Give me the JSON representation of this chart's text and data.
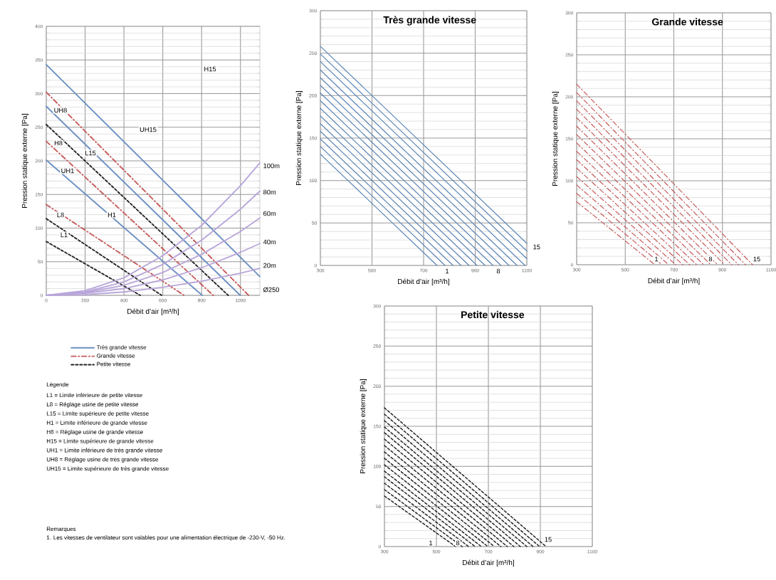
{
  "chart_data": [
    {
      "type": "line",
      "xlabel": "Débit d’air [m³/h]",
      "ylabel": "Pression statique externe [Pa]",
      "xlim": [
        0,
        1100
      ],
      "ylim": [
        0,
        400
      ],
      "xticks": [
        0,
        200,
        400,
        600,
        800,
        1000
      ],
      "yticks": [
        0,
        50,
        100,
        150,
        200,
        250,
        300,
        350,
        400
      ],
      "grid": true,
      "legend": "bottom",
      "series": [
        {
          "name": "Très grande vitesse",
          "color": "#6b8fc2",
          "line_style": "solid",
          "x": [
            0,
            1100
          ],
          "values": [
            343,
            28
          ]
        },
        {
          "color": "#6b8fc2",
          "line_style": "solid",
          "x": [
            0,
            999
          ],
          "values": [
            281,
            0
          ]
        },
        {
          "color": "#6b8fc2",
          "line_style": "solid",
          "x": [
            0,
            803
          ],
          "values": [
            201,
            0
          ]
        },
        {
          "name": "Grande vitesse",
          "color": "#c65a5a",
          "line_style": "dashed",
          "x": [
            0,
            1042
          ],
          "values": [
            302,
            0
          ]
        },
        {
          "color": "#c65a5a",
          "line_style": "dashed",
          "x": [
            0,
            860
          ],
          "values": [
            229,
            0
          ]
        },
        {
          "color": "#c65a5a",
          "line_style": "dashed",
          "x": [
            0,
            710
          ],
          "values": [
            135,
            0
          ]
        },
        {
          "name": "Petite vitesse",
          "color": "#222222",
          "line_style": "dotted",
          "x": [
            0,
            937
          ],
          "values": [
            254,
            0
          ]
        },
        {
          "color": "#222222",
          "line_style": "dotted",
          "x": [
            0,
            594
          ],
          "values": [
            114,
            0
          ]
        },
        {
          "color": "#222222",
          "line_style": "dotted",
          "x": [
            0,
            484
          ],
          "values": [
            80,
            0
          ]
        },
        {
          "color": "#b9a6da",
          "line_style": "solid",
          "x": [
            0,
            200,
            400,
            600,
            800,
            1000,
            1100
          ],
          "values": [
            0,
            7,
            26,
            59,
            104,
            163,
            197
          ]
        },
        {
          "color": "#b9a6da",
          "line_style": "solid",
          "x": [
            0,
            200,
            400,
            600,
            800,
            1000,
            1100
          ],
          "values": [
            0,
            5,
            20,
            46,
            82,
            128,
            155
          ]
        },
        {
          "color": "#b9a6da",
          "line_style": "solid",
          "x": [
            0,
            200,
            400,
            600,
            800,
            1000,
            1100
          ],
          "values": [
            0,
            4,
            15,
            34,
            61,
            95,
            115
          ]
        },
        {
          "color": "#b9a6da",
          "line_style": "solid",
          "x": [
            0,
            200,
            400,
            600,
            800,
            1000,
            1100
          ],
          "values": [
            0,
            3,
            10,
            23,
            41,
            64,
            77
          ]
        },
        {
          "color": "#b9a6da",
          "line_style": "solid",
          "x": [
            0,
            200,
            400,
            600,
            800,
            1000,
            1100
          ],
          "values": [
            0,
            1,
            5,
            12,
            21,
            33,
            40
          ]
        }
      ],
      "annotations": [
        "H15",
        "UH15",
        "UH8",
        "H8",
        "L15",
        "UH1",
        "L8",
        "H1",
        "L1",
        "100m",
        "80m",
        "60m",
        "40m",
        "20m",
        "Ø250",
        "Légende",
        "L1 = Limite inférieure de petite vitesse",
        "L8 = Réglage usine de petite vitesse",
        "L15 = Limite supérieure de petite vitesse",
        "H1 = Limite inférieure de grande vitesse",
        "H8 = Réglage usine de grande vitesse",
        "H15 = Limite supérieure de grande vitesse",
        "UH1 = Limite inférieure de très grande vitesse",
        "UH8 = Réglage usine de très grande vitesse",
        "UH15 = Limite supérieure de très grande vitesse",
        "Remarques",
        "1. Les vitesses de ventilateur sont valables pour une alimentation électrique de -230-V, -50 Hz."
      ]
    },
    {
      "type": "line",
      "title": "Très grande vitesse",
      "xlabel": "Débit d’air [m³/h]",
      "ylabel": "Pression statique externe [Pa]",
      "xlim": [
        300,
        1100
      ],
      "ylim": [
        0,
        300
      ],
      "xticks": [
        300,
        500,
        700,
        900,
        1100
      ],
      "yticks": [
        0,
        50,
        100,
        150,
        200,
        250,
        300
      ],
      "grid": true,
      "series": [
        {
          "color": "#5a86b8",
          "line_style": "solid",
          "x": [
            300,
            752
          ],
          "values": [
            131,
            0
          ]
        },
        {
          "color": "#5a86b8",
          "line_style": "solid",
          "x": [
            300,
            783
          ],
          "values": [
            140,
            0
          ]
        },
        {
          "color": "#5a86b8",
          "line_style": "solid",
          "x": [
            300,
            814
          ],
          "values": [
            149,
            0
          ]
        },
        {
          "color": "#5a86b8",
          "line_style": "solid",
          "x": [
            300,
            845
          ],
          "values": [
            158,
            0
          ]
        },
        {
          "color": "#5a86b8",
          "line_style": "solid",
          "x": [
            300,
            876
          ],
          "values": [
            167,
            0
          ]
        },
        {
          "color": "#5a86b8",
          "line_style": "solid",
          "x": [
            300,
            907
          ],
          "values": [
            176,
            0
          ]
        },
        {
          "color": "#5a86b8",
          "line_style": "solid",
          "x": [
            300,
            938
          ],
          "values": [
            185,
            0
          ]
        },
        {
          "color": "#5a86b8",
          "line_style": "solid",
          "x": [
            300,
            969
          ],
          "values": [
            194,
            0
          ]
        },
        {
          "color": "#5a86b8",
          "line_style": "solid",
          "x": [
            300,
            1000
          ],
          "values": [
            203,
            0
          ]
        },
        {
          "color": "#5a86b8",
          "line_style": "solid",
          "x": [
            300,
            1031
          ],
          "values": [
            212,
            0
          ]
        },
        {
          "color": "#5a86b8",
          "line_style": "solid",
          "x": [
            300,
            1062
          ],
          "values": [
            221,
            0
          ]
        },
        {
          "color": "#5a86b8",
          "line_style": "solid",
          "x": [
            300,
            1093
          ],
          "values": [
            230,
            0
          ]
        },
        {
          "color": "#5a86b8",
          "line_style": "solid",
          "x": [
            300,
            1100
          ],
          "values": [
            240,
            8
          ]
        },
        {
          "color": "#5a86b8",
          "line_style": "solid",
          "x": [
            300,
            1100
          ],
          "values": [
            249,
            17
          ]
        },
        {
          "color": "#5a86b8",
          "line_style": "solid",
          "x": [
            300,
            1100
          ],
          "values": [
            258,
            26
          ]
        }
      ],
      "annotations": [
        "1",
        "8",
        "15"
      ]
    },
    {
      "type": "line",
      "title": "Grande vitesse",
      "xlabel": "Débit d’air [m³/h]",
      "ylabel": "Pression statique externe [Pa]",
      "xlim": [
        300,
        1100
      ],
      "ylim": [
        0,
        300
      ],
      "xticks": [
        300,
        500,
        700,
        900,
        1100
      ],
      "yticks": [
        0,
        50,
        100,
        150,
        200,
        250,
        300
      ],
      "grid": true,
      "series": [
        {
          "color": "#c65a5a",
          "line_style": "dashed",
          "x": [
            300,
            622
          ],
          "values": [
            75,
            0
          ]
        },
        {
          "color": "#c65a5a",
          "line_style": "dashed",
          "x": [
            300,
            651
          ],
          "values": [
            85,
            0
          ]
        },
        {
          "color": "#c65a5a",
          "line_style": "dashed",
          "x": [
            300,
            679
          ],
          "values": [
            95,
            0
          ]
        },
        {
          "color": "#c65a5a",
          "line_style": "dashed",
          "x": [
            300,
            708
          ],
          "values": [
            105,
            0
          ]
        },
        {
          "color": "#c65a5a",
          "line_style": "dashed",
          "x": [
            300,
            737
          ],
          "values": [
            115,
            0
          ]
        },
        {
          "color": "#c65a5a",
          "line_style": "dashed",
          "x": [
            300,
            765
          ],
          "values": [
            125,
            0
          ]
        },
        {
          "color": "#c65a5a",
          "line_style": "dashed",
          "x": [
            300,
            794
          ],
          "values": [
            135,
            0
          ]
        },
        {
          "color": "#c65a5a",
          "line_style": "dashed",
          "x": [
            300,
            823
          ],
          "values": [
            145,
            0
          ]
        },
        {
          "color": "#c65a5a",
          "line_style": "dashed",
          "x": [
            300,
            852
          ],
          "values": [
            155,
            0
          ]
        },
        {
          "color": "#c65a5a",
          "line_style": "dashed",
          "x": [
            300,
            880
          ],
          "values": [
            165,
            0
          ]
        },
        {
          "color": "#c65a5a",
          "line_style": "dashed",
          "x": [
            300,
            909
          ],
          "values": [
            175,
            0
          ]
        },
        {
          "color": "#c65a5a",
          "line_style": "dashed",
          "x": [
            300,
            938
          ],
          "values": [
            185,
            0
          ]
        },
        {
          "color": "#c65a5a",
          "line_style": "dashed",
          "x": [
            300,
            966
          ],
          "values": [
            195,
            0
          ]
        },
        {
          "color": "#c65a5a",
          "line_style": "dashed",
          "x": [
            300,
            995
          ],
          "values": [
            205,
            0
          ]
        },
        {
          "color": "#c65a5a",
          "line_style": "dashed",
          "x": [
            300,
            1024
          ],
          "values": [
            215,
            0
          ]
        }
      ],
      "annotations": [
        "1",
        "8",
        "15"
      ]
    },
    {
      "type": "line",
      "title": "Petite vitesse",
      "xlabel": "Débit d’air [m³/h]",
      "ylabel": "Pression statique externe [Pa]",
      "xlim": [
        300,
        1100
      ],
      "ylim": [
        0,
        300
      ],
      "xticks": [
        300,
        500,
        700,
        900,
        1100
      ],
      "yticks": [
        0,
        50,
        100,
        150,
        200,
        250,
        300
      ],
      "grid": true,
      "series": [
        {
          "color": "#222222",
          "line_style": "dotted",
          "x": [
            300,
            574
          ],
          "values": [
            63,
            0
          ]
        },
        {
          "color": "#222222",
          "line_style": "dotted",
          "x": [
            300,
            599
          ],
          "values": [
            71,
            0
          ]
        },
        {
          "color": "#222222",
          "line_style": "dotted",
          "x": [
            300,
            624
          ],
          "values": [
            79,
            0
          ]
        },
        {
          "color": "#222222",
          "line_style": "dotted",
          "x": [
            300,
            649
          ],
          "values": [
            87,
            0
          ]
        },
        {
          "color": "#222222",
          "line_style": "dotted",
          "x": [
            300,
            673
          ],
          "values": [
            94,
            0
          ]
        },
        {
          "color": "#222222",
          "line_style": "dotted",
          "x": [
            300,
            698
          ],
          "values": [
            102,
            0
          ]
        },
        {
          "color": "#222222",
          "line_style": "dotted",
          "x": [
            300,
            723
          ],
          "values": [
            110,
            0
          ]
        },
        {
          "color": "#222222",
          "line_style": "dotted",
          "x": [
            300,
            748
          ],
          "values": [
            118,
            0
          ]
        },
        {
          "color": "#222222",
          "line_style": "dotted",
          "x": [
            300,
            773
          ],
          "values": [
            126,
            0
          ]
        },
        {
          "color": "#222222",
          "line_style": "dotted",
          "x": [
            300,
            798
          ],
          "values": [
            134,
            0
          ]
        },
        {
          "color": "#222222",
          "line_style": "dotted",
          "x": [
            300,
            823
          ],
          "values": [
            142,
            0
          ]
        },
        {
          "color": "#222222",
          "line_style": "dotted",
          "x": [
            300,
            848
          ],
          "values": [
            149,
            0
          ]
        },
        {
          "color": "#222222",
          "line_style": "dotted",
          "x": [
            300,
            872
          ],
          "values": [
            157,
            0
          ]
        },
        {
          "color": "#222222",
          "line_style": "dotted",
          "x": [
            300,
            897
          ],
          "values": [
            165,
            0
          ]
        },
        {
          "color": "#222222",
          "line_style": "dotted",
          "x": [
            300,
            922
          ],
          "values": [
            173,
            0
          ]
        }
      ],
      "annotations": [
        "1",
        "8",
        "15"
      ]
    }
  ]
}
